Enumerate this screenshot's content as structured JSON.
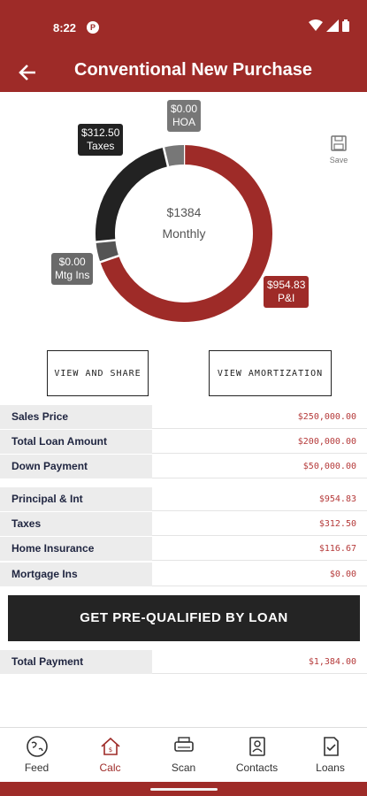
{
  "status": {
    "time": "8:22",
    "app_badge": "P"
  },
  "header": {
    "title": "Conventional New Purchase"
  },
  "chart_data": {
    "type": "pie",
    "center_value": "$1384",
    "center_label": "Monthly",
    "slices": [
      {
        "name": "P&I",
        "label_value": "$954.83",
        "value": 954.83,
        "color": "#9e2b28"
      },
      {
        "name": "Mtg Ins",
        "label_value": "$0.00",
        "value": 0.0,
        "color": "#555555"
      },
      {
        "name": "Taxes",
        "label_value": "$312.50",
        "value": 312.5,
        "color": "#222222"
      },
      {
        "name": "HOA",
        "label_value": "$0.00",
        "value": 0.0,
        "color": "#777777"
      }
    ]
  },
  "save": {
    "label": "Save"
  },
  "buttons": {
    "view_share": "VIEW AND SHARE",
    "view_amort": "VIEW AMORTIZATION",
    "cta": "GET PRE-QUALIFIED BY LOAN"
  },
  "table1": [
    {
      "label": "Sales Price",
      "value": "$250,000.00"
    },
    {
      "label": "Total Loan Amount",
      "value": "$200,000.00"
    },
    {
      "label": "Down Payment",
      "value": "$50,000.00"
    }
  ],
  "table2": [
    {
      "label": "Principal & Int",
      "value": "$954.83"
    },
    {
      "label": "Taxes",
      "value": "$312.50"
    },
    {
      "label": "Home Insurance",
      "value": "$116.67"
    },
    {
      "label": "Mortgage Ins",
      "value": "$0.00"
    }
  ],
  "total": {
    "label": "Total Payment",
    "value": "$1,384.00"
  },
  "nav": [
    {
      "label": "Feed",
      "icon": "globe-icon"
    },
    {
      "label": "Calc",
      "icon": "home-calc-icon",
      "active": true
    },
    {
      "label": "Scan",
      "icon": "scanner-icon"
    },
    {
      "label": "Contacts",
      "icon": "contacts-icon"
    },
    {
      "label": "Loans",
      "icon": "document-check-icon"
    }
  ],
  "colors": {
    "brand": "#9e2b28",
    "dark": "#242424",
    "value_text": "#b53a3a"
  }
}
